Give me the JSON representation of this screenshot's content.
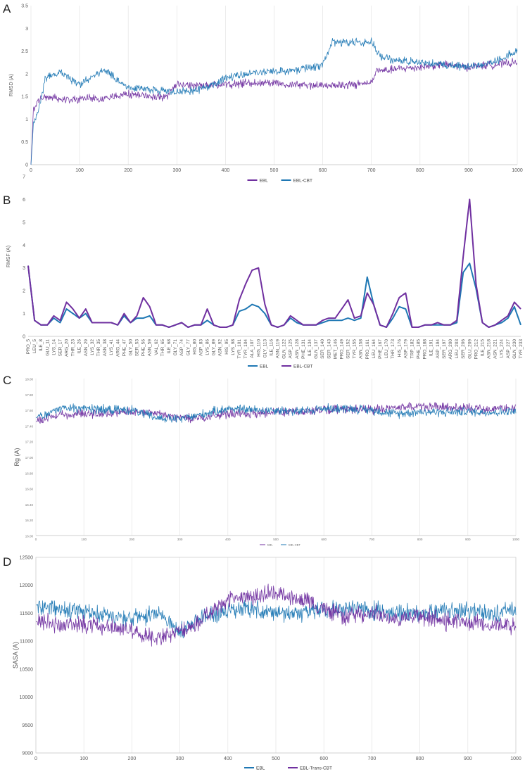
{
  "colors": {
    "purple": "#7030A0",
    "blue": "#1F78B4"
  },
  "chart_data": [
    {
      "panel": "A",
      "type": "line",
      "ylabel": "RMSD (A)",
      "xlabel": "",
      "xlim": [
        0,
        1000
      ],
      "ylim": [
        0,
        3.5
      ],
      "x_ticks": [
        "0",
        "100",
        "200",
        "300",
        "400",
        "500",
        "600",
        "700",
        "800",
        "900",
        "1000"
      ],
      "y_ticks": [
        "0",
        "0.5",
        "1",
        "1.5",
        "2",
        "2.5",
        "3",
        "3.5"
      ],
      "grid": "vertical",
      "legend_position": "bottom",
      "legend_order": [
        "EBL",
        "EBL-CBT"
      ],
      "series": [
        {
          "name": "EBL",
          "color": "#7030A0",
          "x": [
            0,
            5,
            15,
            30,
            60,
            100,
            150,
            200,
            250,
            280,
            300,
            350,
            400,
            450,
            500,
            550,
            600,
            650,
            700,
            710,
            750,
            800,
            850,
            900,
            950,
            1000
          ],
          "y": [
            0,
            1.2,
            1.4,
            1.5,
            1.45,
            1.45,
            1.45,
            1.55,
            1.5,
            1.5,
            1.75,
            1.75,
            1.75,
            1.8,
            1.8,
            1.75,
            1.75,
            1.75,
            1.8,
            2.05,
            2.1,
            2.15,
            2.2,
            2.15,
            2.2,
            2.25
          ]
        },
        {
          "name": "EBL-CBT",
          "color": "#1F78B4",
          "x": [
            0,
            5,
            15,
            30,
            60,
            100,
            150,
            200,
            250,
            300,
            350,
            400,
            450,
            500,
            550,
            600,
            620,
            650,
            700,
            720,
            750,
            800,
            850,
            900,
            950,
            1000
          ],
          "y": [
            0,
            0.9,
            1.2,
            1.9,
            2.05,
            1.75,
            2.1,
            1.7,
            1.65,
            1.6,
            1.65,
            1.9,
            2.0,
            2.05,
            2.1,
            2.2,
            2.7,
            2.7,
            2.7,
            2.35,
            2.3,
            2.25,
            2.2,
            2.15,
            2.25,
            2.5
          ]
        }
      ]
    },
    {
      "panel": "B",
      "type": "line",
      "ylabel": "RMSF (A)",
      "xlabel": "",
      "ylim": [
        0,
        7
      ],
      "y_ticks": [
        "0",
        "1",
        "2",
        "3",
        "4",
        "5",
        "6",
        "7"
      ],
      "categories": [
        "PRO_5",
        "LEU_5",
        "ILE_8",
        "GLU_11",
        "LYS_14",
        "SER_17",
        "ARG_20",
        "THR_23",
        "ILE_26",
        "ASN_29",
        "LYS_32",
        "THR_35",
        "ASN_38",
        "LYS_41",
        "ARG_44",
        "PHE_47",
        "GLY_50",
        "SER_53",
        "PHE_56",
        "ASN_59",
        "VAL_62",
        "THR_65",
        "ILE_68",
        "GLY_71",
        "ASP_74",
        "GLY_77",
        "HIS_80",
        "ASP_83",
        "LYS_86",
        "GLY_89",
        "ASN_92",
        "HIS_95",
        "LYS_98",
        "TYR_101",
        "TYR_104",
        "ALA_107",
        "HIS_110",
        "GLY_113",
        "ILE_116",
        "ASN_119",
        "GLN_122",
        "ASP_125",
        "ASN_128",
        "PHE_131",
        "ILE_134",
        "GLN_137",
        "SER_140",
        "SER_143",
        "MET_146",
        "PRO_149",
        "SER_152",
        "TYR_155",
        "ASN_158",
        "PRO_161",
        "LEU_164",
        "PHE_167",
        "LEU_170",
        "THR_173",
        "HIS_176",
        "ASP_179",
        "TRP_182",
        "PHE_185",
        "PRO_188",
        "ILE_191",
        "ASP_194",
        "SER_197",
        "ARG_200",
        "LEU_203",
        "SER_206",
        "GLU_209",
        "PRO_212",
        "ILE_215",
        "ASN_218",
        "ASN_221",
        "LYS_224",
        "ASP_227",
        "GLN_230",
        "TYR_233"
      ],
      "legend_order": [
        "EBL",
        "EBL-CBT"
      ],
      "series": [
        {
          "name": "EBL",
          "color": "#1F78B4",
          "values": [
            3.1,
            0.7,
            0.5,
            0.5,
            0.8,
            0.6,
            1.2,
            1.0,
            0.8,
            1.0,
            0.6,
            0.6,
            0.6,
            0.6,
            0.5,
            0.9,
            0.6,
            0.8,
            0.8,
            0.9,
            0.5,
            0.5,
            0.4,
            0.5,
            0.6,
            0.4,
            0.5,
            0.5,
            0.7,
            0.5,
            0.4,
            0.4,
            0.5,
            1.1,
            1.2,
            1.4,
            1.3,
            1.0,
            0.5,
            0.4,
            0.5,
            0.8,
            0.6,
            0.5,
            0.5,
            0.5,
            0.6,
            0.7,
            0.7,
            0.7,
            0.8,
            0.7,
            0.8,
            2.6,
            1.4,
            0.5,
            0.4,
            0.8,
            1.3,
            1.2,
            0.4,
            0.4,
            0.5,
            0.5,
            0.5,
            0.5,
            0.5,
            0.6,
            2.8,
            3.2,
            2.1,
            0.6,
            0.4,
            0.5,
            0.6,
            0.8,
            1.3,
            0.5
          ]
        },
        {
          "name": "EBL-CBT",
          "color": "#7030A0",
          "values": [
            3.1,
            0.7,
            0.5,
            0.5,
            0.9,
            0.7,
            1.5,
            1.2,
            0.8,
            1.2,
            0.6,
            0.6,
            0.6,
            0.6,
            0.5,
            1.0,
            0.6,
            0.9,
            1.7,
            1.3,
            0.5,
            0.5,
            0.4,
            0.5,
            0.6,
            0.4,
            0.5,
            0.5,
            1.2,
            0.5,
            0.4,
            0.4,
            0.5,
            1.6,
            2.3,
            2.9,
            3.0,
            1.4,
            0.5,
            0.4,
            0.5,
            0.9,
            0.7,
            0.5,
            0.5,
            0.5,
            0.7,
            0.8,
            0.8,
            1.2,
            1.6,
            0.8,
            0.9,
            1.9,
            1.4,
            0.5,
            0.4,
            1.0,
            1.7,
            1.9,
            0.4,
            0.4,
            0.5,
            0.5,
            0.6,
            0.5,
            0.5,
            0.7,
            3.5,
            6.0,
            2.3,
            0.6,
            0.4,
            0.5,
            0.7,
            0.9,
            1.5,
            1.2
          ]
        }
      ]
    },
    {
      "panel": "C",
      "type": "line",
      "ylabel": "Rg (A)",
      "xlabel": "",
      "xlim": [
        0,
        1000
      ],
      "ylim": [
        16.0,
        18.0
      ],
      "x_ticks": [
        "0",
        "100",
        "200",
        "300",
        "400",
        "500",
        "600",
        "700",
        "800",
        "900",
        "1000"
      ],
      "y_ticks": [
        "16.00",
        "16.20",
        "16.40",
        "16.60",
        "16.80",
        "17.00",
        "17.20",
        "17.40",
        "17.60",
        "17.80",
        "18.00"
      ],
      "grid": "vertical",
      "legend_position": "bottom",
      "legend_order": [
        "EBL",
        "EBL-CBT"
      ],
      "series": [
        {
          "name": "EBL",
          "color": "#7030A0",
          "x": [
            0,
            50,
            100,
            150,
            200,
            250,
            300,
            350,
            400,
            450,
            500,
            550,
            600,
            650,
            700,
            750,
            800,
            850,
            900,
            950,
            1000
          ],
          "y": [
            17.45,
            17.55,
            17.55,
            17.55,
            17.58,
            17.55,
            17.5,
            17.5,
            17.55,
            17.55,
            17.58,
            17.58,
            17.6,
            17.62,
            17.6,
            17.63,
            17.65,
            17.63,
            17.62,
            17.62,
            17.62
          ]
        },
        {
          "name": "EBL-CBT",
          "color": "#1F78B4",
          "x": [
            0,
            50,
            100,
            150,
            200,
            250,
            300,
            350,
            400,
            450,
            500,
            550,
            600,
            650,
            700,
            750,
            800,
            850,
            900,
            950,
            1000
          ],
          "y": [
            17.5,
            17.62,
            17.62,
            17.6,
            17.6,
            17.5,
            17.48,
            17.55,
            17.62,
            17.6,
            17.6,
            17.58,
            17.62,
            17.62,
            17.6,
            17.55,
            17.58,
            17.57,
            17.58,
            17.57,
            17.58
          ]
        }
      ]
    },
    {
      "panel": "D",
      "type": "line",
      "ylabel": "SASA (A)",
      "xlabel": "",
      "xlim": [
        0,
        1000
      ],
      "ylim": [
        9000,
        12500
      ],
      "x_ticks": [
        "0",
        "100",
        "200",
        "300",
        "400",
        "500",
        "600",
        "700",
        "800",
        "900",
        "1000"
      ],
      "y_ticks": [
        "9000",
        "9500",
        "10000",
        "10500",
        "11000",
        "11500",
        "12000",
        "12500"
      ],
      "grid": "vertical",
      "legend_position": "bottom",
      "legend_order": [
        "EBL",
        "EBL-Trans-CBT"
      ],
      "series": [
        {
          "name": "EBL",
          "color": "#1F78B4",
          "x": [
            0,
            50,
            100,
            150,
            200,
            250,
            300,
            350,
            400,
            450,
            500,
            550,
            600,
            650,
            700,
            750,
            800,
            850,
            900,
            950,
            1000
          ],
          "y": [
            11650,
            11550,
            11550,
            11450,
            11400,
            11500,
            11150,
            11450,
            11550,
            11600,
            11500,
            11500,
            11550,
            11600,
            11550,
            11500,
            11500,
            11550,
            11550,
            11500,
            11550
          ]
        },
        {
          "name": "EBL-Trans-CBT",
          "color": "#7030A0",
          "x": [
            0,
            50,
            100,
            150,
            200,
            250,
            300,
            350,
            400,
            450,
            500,
            550,
            600,
            650,
            700,
            750,
            800,
            850,
            900,
            950,
            1000
          ],
          "y": [
            11350,
            11300,
            11300,
            11250,
            11200,
            11050,
            11150,
            11400,
            11750,
            11800,
            11850,
            11800,
            11550,
            11450,
            11500,
            11400,
            11450,
            11350,
            11350,
            11300,
            11300
          ]
        }
      ]
    }
  ]
}
